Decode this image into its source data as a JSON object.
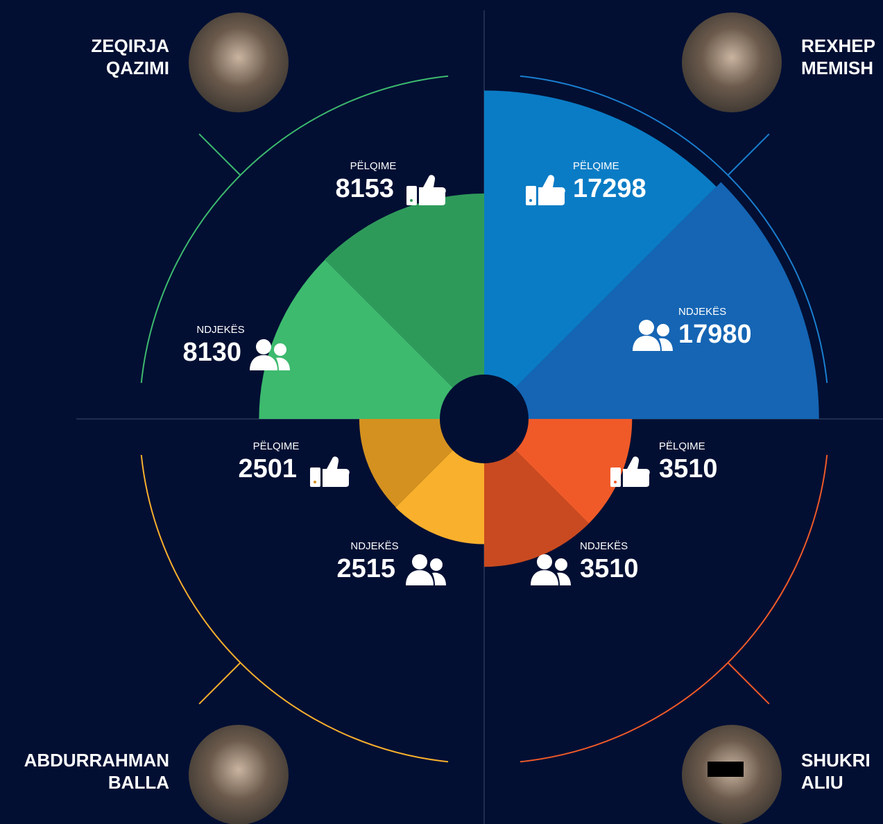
{
  "chart_data": {
    "type": "polar-area",
    "categories": [
      "PËLQIME",
      "NDJEKËS"
    ],
    "series": [
      {
        "name": [
          "ZEQIRJA",
          "QAZIMI"
        ],
        "colors": [
          "#2e9a5a",
          "#3dba6e"
        ],
        "color": "#3dba6e",
        "values": [
          8153,
          8130
        ]
      },
      {
        "name": [
          "REXHEP",
          "MEMISH"
        ],
        "colors": [
          "#0a7cc5",
          "#1565b4"
        ],
        "color": "#1a7fd0",
        "values": [
          17298,
          17980
        ]
      },
      {
        "name": [
          "ABDURRAHMAN",
          "BALLA"
        ],
        "colors": [
          "#d4911f",
          "#f9b02c"
        ],
        "color": "#f9b02c",
        "values": [
          2501,
          2515
        ]
      },
      {
        "name": [
          "SHUKRI",
          "ALIU"
        ],
        "colors": [
          "#f05a28",
          "#c94a20"
        ],
        "color": "#f05a28",
        "values": [
          3510,
          3510
        ]
      }
    ]
  }
}
